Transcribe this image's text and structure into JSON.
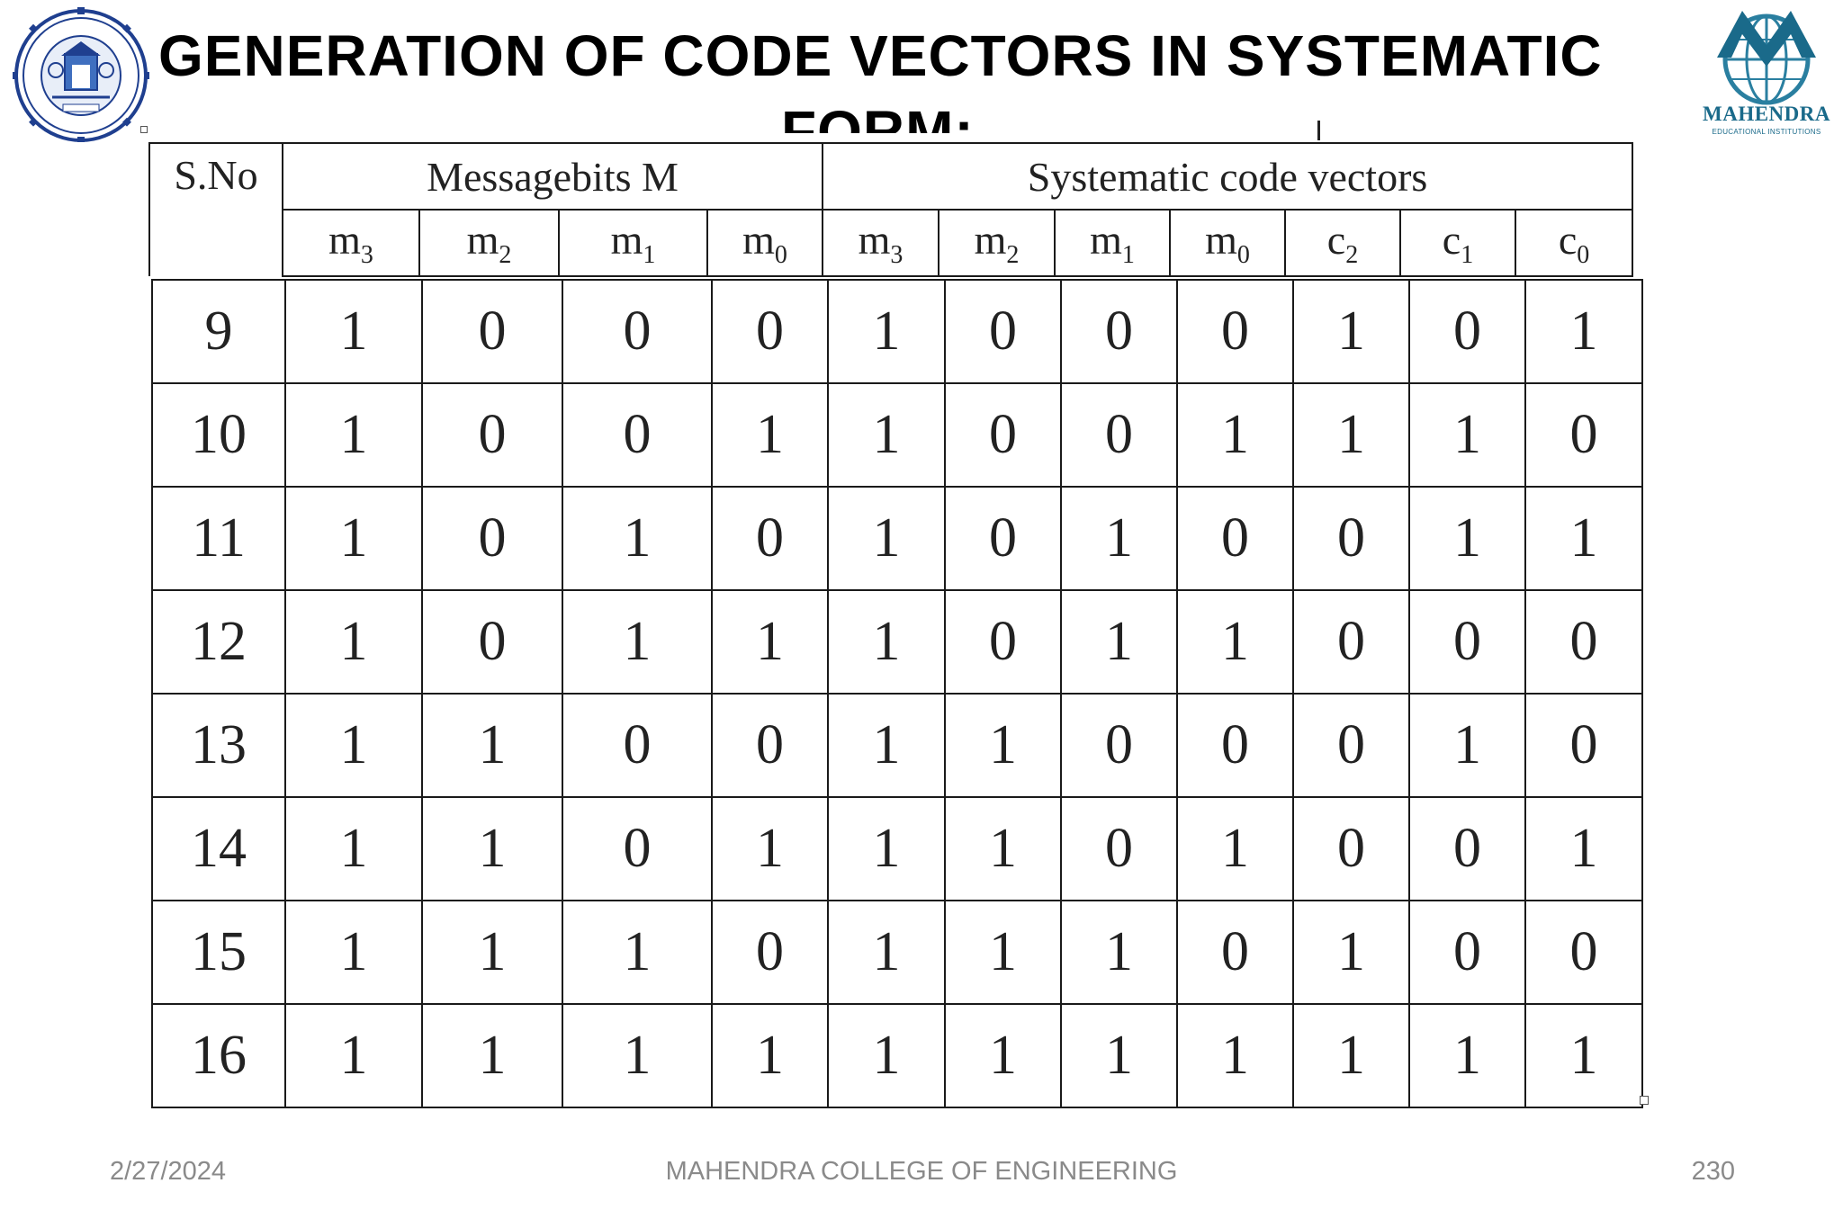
{
  "title": {
    "line1": "GENERATION OF CODE VECTORS IN SYSTEMATIC",
    "line2": "FORM:"
  },
  "logos": {
    "left": {
      "text": "MAHENDRA COLLEGE OF ENGINEERING",
      "icon": "college-seal-icon"
    },
    "right": {
      "text": "MAHENDRA",
      "sub": "EDUCATIONAL INSTITUTIONS",
      "icon": "mahendra-globe-icon"
    }
  },
  "table": {
    "sno_header": "S.No",
    "group_message": "Messagebits M",
    "group_code": "Systematic code vectors",
    "sub_headers": [
      {
        "base": "m",
        "sub": "3"
      },
      {
        "base": "m",
        "sub": "2"
      },
      {
        "base": "m",
        "sub": "1"
      },
      {
        "base": "m",
        "sub": "0"
      },
      {
        "base": "m",
        "sub": "3"
      },
      {
        "base": "m",
        "sub": "2"
      },
      {
        "base": "m",
        "sub": "1"
      },
      {
        "base": "m",
        "sub": "0"
      },
      {
        "base": "c",
        "sub": "2"
      },
      {
        "base": "c",
        "sub": "1"
      },
      {
        "base": "c",
        "sub": "0"
      }
    ],
    "rows": [
      {
        "sno": "9",
        "message": [
          "1",
          "0",
          "0",
          "0"
        ],
        "code": [
          "1",
          "0",
          "0",
          "0",
          "1",
          "0",
          "1"
        ]
      },
      {
        "sno": "10",
        "message": [
          "1",
          "0",
          "0",
          "1"
        ],
        "code": [
          "1",
          "0",
          "0",
          "1",
          "1",
          "1",
          "0"
        ]
      },
      {
        "sno": "11",
        "message": [
          "1",
          "0",
          "1",
          "0"
        ],
        "code": [
          "1",
          "0",
          "1",
          "0",
          "0",
          "1",
          "1"
        ]
      },
      {
        "sno": "12",
        "message": [
          "1",
          "0",
          "1",
          "1"
        ],
        "code": [
          "1",
          "0",
          "1",
          "1",
          "0",
          "0",
          "0"
        ]
      },
      {
        "sno": "13",
        "message": [
          "1",
          "1",
          "0",
          "0"
        ],
        "code": [
          "1",
          "1",
          "0",
          "0",
          "0",
          "1",
          "0"
        ]
      },
      {
        "sno": "14",
        "message": [
          "1",
          "1",
          "0",
          "1"
        ],
        "code": [
          "1",
          "1",
          "0",
          "1",
          "0",
          "0",
          "1"
        ]
      },
      {
        "sno": "15",
        "message": [
          "1",
          "1",
          "1",
          "0"
        ],
        "code": [
          "1",
          "1",
          "1",
          "0",
          "1",
          "0",
          "0"
        ]
      },
      {
        "sno": "16",
        "message": [
          "1",
          "1",
          "1",
          "1"
        ],
        "code": [
          "1",
          "1",
          "1",
          "1",
          "1",
          "1",
          "1"
        ]
      }
    ]
  },
  "footer": {
    "date": "2/27/2024",
    "center": "MAHENDRA COLLEGE OF ENGINEERING",
    "page": "230"
  },
  "colors": {
    "footer_text": "#8a8a8a",
    "logo_blue": "#1a6a8a",
    "border": "#1a1a1a"
  }
}
